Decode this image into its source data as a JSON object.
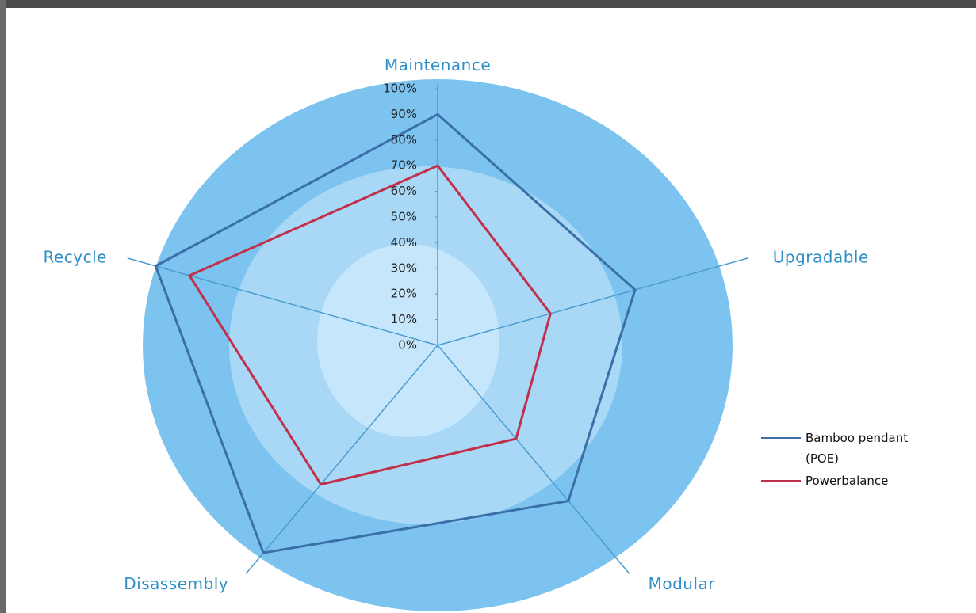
{
  "chart_data": {
    "type": "radar",
    "categories": [
      "Maintenance",
      "Upgradable",
      "Modular",
      "Disassembly",
      "Recycle"
    ],
    "series": [
      {
        "name": "Bamboo pendant (POE)",
        "color": "#3a6fa8",
        "values": [
          90,
          70,
          75,
          100,
          100
        ]
      },
      {
        "name": "Powerbalance",
        "color": "#c0304a",
        "values": [
          70,
          40,
          45,
          67,
          88
        ]
      }
    ],
    "ylim": [
      0,
      100
    ],
    "yticks": [
      {
        "value": 0,
        "label": "0%"
      },
      {
        "value": 10,
        "label": "10%"
      },
      {
        "value": 20,
        "label": "20%"
      },
      {
        "value": 30,
        "label": "30%"
      },
      {
        "value": 40,
        "label": "40%"
      },
      {
        "value": 50,
        "label": "50%"
      },
      {
        "value": 60,
        "label": "60%"
      },
      {
        "value": 70,
        "label": "70%"
      },
      {
        "value": 80,
        "label": "80%"
      },
      {
        "value": 90,
        "label": "90%"
      },
      {
        "value": 100,
        "label": "100%"
      }
    ]
  }
}
